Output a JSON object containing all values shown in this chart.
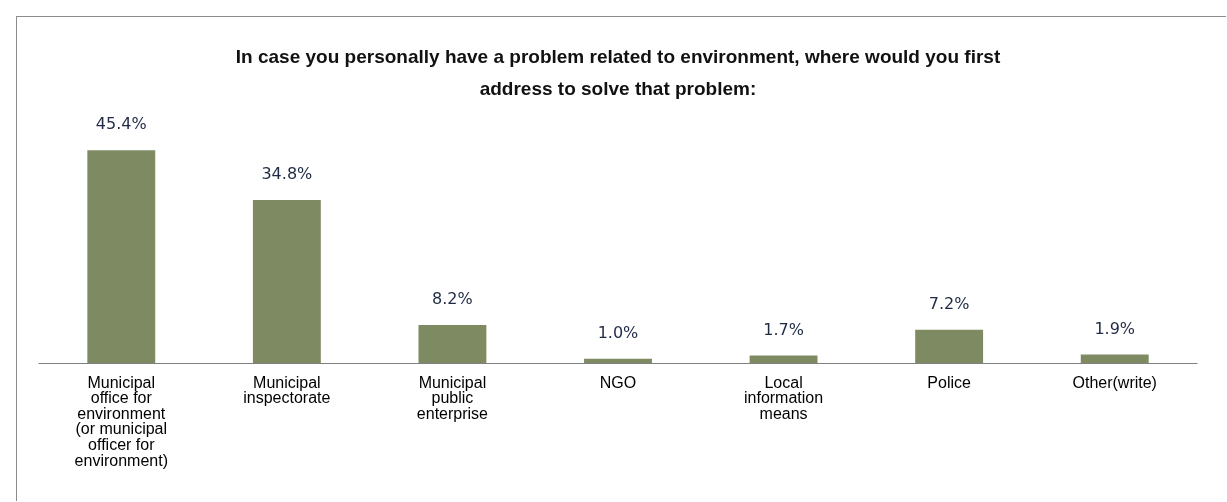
{
  "chart_data": {
    "type": "bar",
    "title": "In case you personally have a problem related to environment, where would you first address to solve that problem:",
    "categories": [
      "Municipal office for environment (or municipal officer for environment)",
      "Municipal inspectorate",
      "Municipal public enterprise",
      "NGO",
      "Local information means",
      "Police",
      "Other(write)"
    ],
    "values": [
      45.4,
      34.8,
      8.2,
      1.0,
      1.7,
      7.2,
      1.9
    ],
    "value_labels": [
      "45.4%",
      "34.8%",
      "8.2%",
      "1.0%",
      "1.7%",
      "7.2%",
      "1.9%"
    ],
    "color": "#7d8a62",
    "tick_labels": "x",
    "grid": false
  }
}
